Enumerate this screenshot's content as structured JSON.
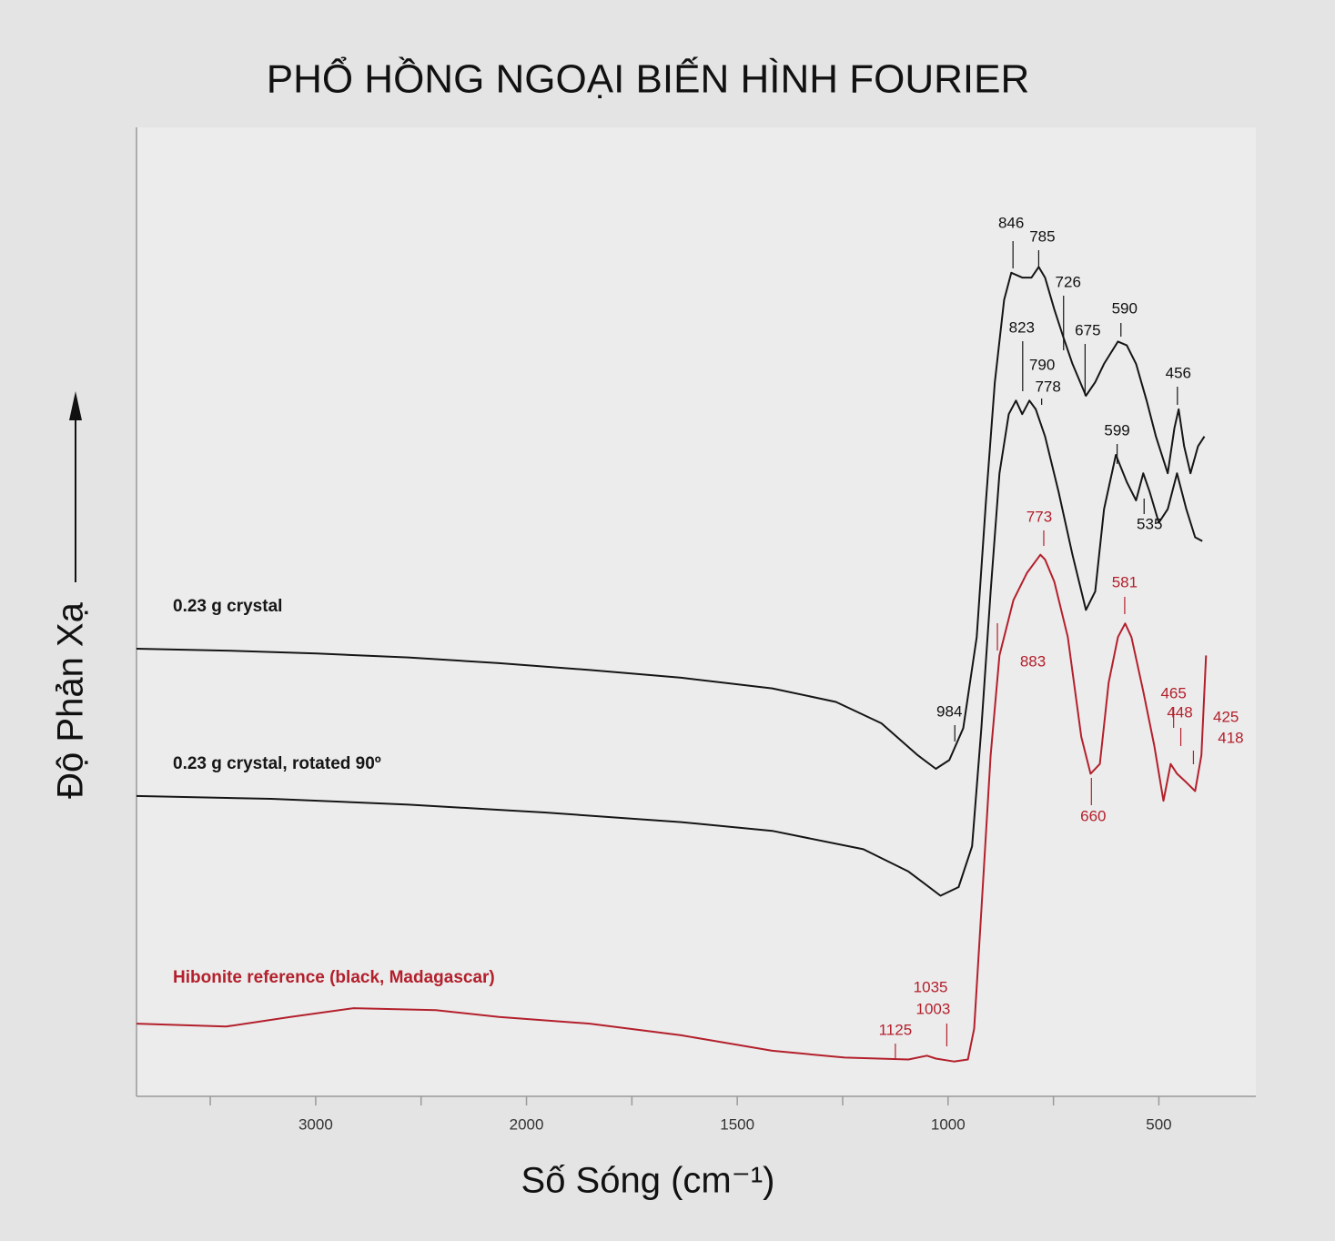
{
  "chart_data": {
    "type": "line",
    "title": "PHỔ HỒNG NGOẠI BIẾN HÌNH FOURIER",
    "xlabel": "Số Sóng (cm⁻¹)",
    "ylabel": "Độ Phản Xạ",
    "xlim": [
      3850,
      270
    ],
    "xscale": "split",
    "xsplit": 2000,
    "xsplit_ratio": 2,
    "xticks": [
      3000,
      2000,
      1500,
      1000,
      500
    ],
    "xminorticks": [
      3500,
      2500,
      1750,
      1250,
      750
    ],
    "ylim": [
      0,
      100
    ],
    "series": [
      {
        "name": "0.23 g crystal",
        "color": "#151515",
        "x": [
          3850,
          3425,
          2995,
          2560,
          2130,
          1850,
          1633,
          1417,
          1266,
          1158,
          1072,
          1029,
          997,
          964,
          932,
          910,
          889,
          867,
          850,
          824,
          802,
          785,
          770,
          748,
          727,
          705,
          673,
          651,
          630,
          597,
          576,
          554,
          529,
          507,
          479,
          463,
          453,
          440,
          425,
          407,
          392
        ],
        "values": [
          46.2,
          46.0,
          45.7,
          45.3,
          44.7,
          44.0,
          43.2,
          42.1,
          40.7,
          38.5,
          35.2,
          33.8,
          34.7,
          38.0,
          47.4,
          61.5,
          73.7,
          82.2,
          85.0,
          84.5,
          84.5,
          85.6,
          84.5,
          81.2,
          78.4,
          75.6,
          72.3,
          73.7,
          75.6,
          77.9,
          77.5,
          75.6,
          71.8,
          68.1,
          64.3,
          69.0,
          70.9,
          67.1,
          64.3,
          67.1,
          68.1
        ],
        "peaks": [
          846,
          785,
          726,
          675,
          590,
          456,
          984
        ]
      },
      {
        "name": "0.23 g crystal, rotated 90º",
        "color": "#151515",
        "x": [
          3850,
          3210,
          2560,
          1957,
          1633,
          1417,
          1201,
          1094,
          1018,
          975,
          943,
          921,
          899,
          878,
          856,
          839,
          824,
          807,
          792,
          770,
          738,
          705,
          673,
          651,
          630,
          602,
          576,
          554,
          537,
          522,
          500,
          479,
          457,
          435,
          414,
          397
        ],
        "values": [
          31.0,
          30.7,
          30.1,
          29.3,
          28.3,
          27.4,
          25.5,
          23.2,
          20.7,
          21.6,
          25.8,
          38.0,
          52.1,
          64.3,
          70.4,
          71.8,
          70.4,
          71.8,
          70.9,
          68.1,
          62.4,
          55.9,
          50.2,
          52.1,
          60.6,
          66.2,
          63.4,
          61.5,
          64.3,
          62.4,
          59.2,
          60.6,
          64.3,
          60.6,
          57.7,
          57.3
        ],
        "peaks": [
          823,
          790,
          778,
          599,
          535
        ]
      },
      {
        "name": "Hibonite reference (black, Madagascar)",
        "color": "#b3202c",
        "x": [
          3850,
          3425,
          3120,
          2820,
          2430,
          2130,
          1850,
          1633,
          1417,
          1245,
          1094,
          1050,
          1029,
          986,
          953,
          938,
          921,
          899,
          878,
          845,
          813,
          781,
          770,
          748,
          716,
          684,
          662,
          640,
          619,
          597,
          580,
          565,
          537,
          511,
          489,
          472,
          457,
          435,
          414,
          399,
          388
        ],
        "values": [
          7.5,
          7.2,
          8.2,
          9.1,
          8.9,
          8.2,
          7.5,
          6.3,
          4.7,
          4.0,
          3.8,
          4.2,
          3.9,
          3.6,
          3.8,
          7.0,
          19.2,
          35.2,
          45.5,
          51.2,
          54.0,
          55.9,
          55.4,
          53.1,
          47.4,
          37.1,
          33.3,
          34.3,
          42.7,
          47.4,
          48.8,
          47.4,
          41.8,
          36.2,
          30.5,
          34.3,
          33.3,
          32.4,
          31.5,
          35.2,
          45.5
        ],
        "peaks": [
          773,
          883,
          581,
          660,
          465,
          448,
          425,
          418,
          1125,
          1035,
          1003
        ]
      }
    ]
  }
}
